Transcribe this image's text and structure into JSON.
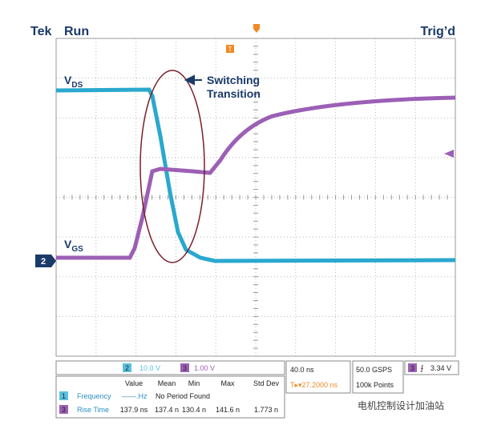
{
  "header": {
    "status_left": "Tek",
    "status_run": "Run",
    "status_right": "Trig’d"
  },
  "waveform_labels": {
    "vds_main": "V",
    "vds_sub": "DS",
    "vgs_main": "V",
    "vgs_sub": "GS",
    "channel_marker": "2",
    "trigger_marker": "T"
  },
  "annotation": {
    "line1": "Switching",
    "line2": "Transition"
  },
  "channels": {
    "ch2_id": "2",
    "ch2_scale": "10.0 V",
    "ch3_id": "3",
    "ch3_scale": "1.00 V"
  },
  "measurements": {
    "columns": [
      "Value",
      "Mean",
      "Min",
      "Max",
      "Std Dev"
    ],
    "rows": [
      {
        "id": "1",
        "name": "Frequency",
        "value": "——.Hz",
        "note": "No Period Found"
      },
      {
        "id": "3",
        "name": "Rise Time",
        "cells": [
          "137.9 ns",
          "137.4 n",
          "130.4 n",
          "141.6 n",
          "1.773 n"
        ]
      }
    ]
  },
  "timebase": {
    "scale": "40.0 ns",
    "position": "T▸▾27.2000 ns"
  },
  "acquisition": {
    "rate": "50.0 GSPS",
    "points": "100k Points"
  },
  "trigger": {
    "channel": "3",
    "slope": "⨍",
    "level": "3.34 V"
  },
  "watermark": "电机控制设计加油站"
}
